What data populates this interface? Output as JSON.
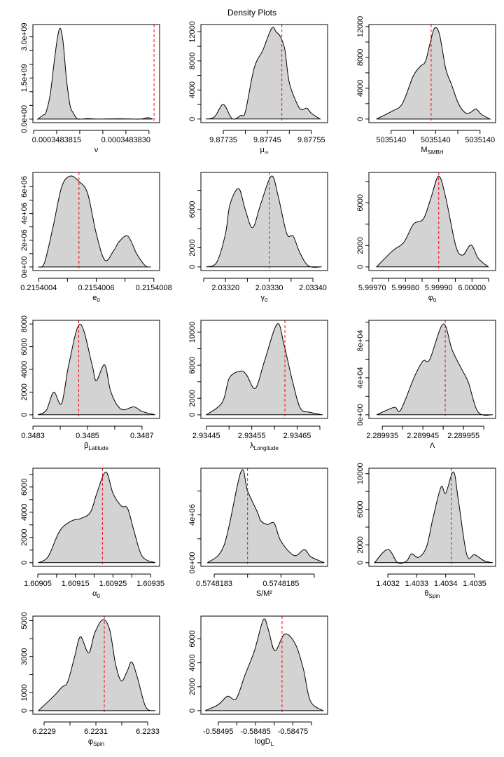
{
  "title": "Density Plots",
  "colors": {
    "fill": "#d3d3d3",
    "line": "#000000",
    "vline": "#ff0000"
  },
  "chart_data": [
    {
      "type": "area",
      "xlabel": {
        "main": "ν",
        "sub": ""
      },
      "xlim": [
        0.000348380985,
        0.00034838373
      ],
      "ylim": [
        -130000000,
        3450000000
      ],
      "xtick_values": [
        0.000348381,
        0.0003483815,
        0.000348382,
        0.0003483825,
        0.000348383,
        0.0003483835
      ],
      "xtick_labels": [
        "",
        "0.0003483815",
        "",
        "",
        "0.0003483830",
        ""
      ],
      "ytick_values": [
        0,
        500000000,
        1000000000,
        1500000000,
        2000000000,
        2500000000,
        3000000000
      ],
      "ytick_labels": [
        "0.0e+00",
        "",
        "",
        "1.5e+09",
        "",
        "",
        "3.0e+09"
      ],
      "vline": 0.00034838361,
      "x": [
        0.00034838109,
        0.00034838121,
        0.00034838127,
        0.00034838136,
        0.00034838144,
        0.00034838152,
        0.00034838158,
        0.00034838164,
        0.00034838171,
        0.00034838179,
        0.00034838185,
        0.00034838194,
        0.00034838203,
        0.00034838217,
        0.00034838239,
        0.00034838285,
        0.0003483833,
        0.00034838345,
        0.00034838352,
        0.00034838358
      ],
      "y": [
        0,
        150000000,
        250000000,
        900000000,
        2000000000,
        3000000000,
        3310000000,
        2800000000,
        1500000000,
        500000000,
        250000000,
        20000000,
        0,
        20000000,
        0,
        15000000,
        0,
        50000000,
        40000000,
        0
      ]
    },
    {
      "type": "area",
      "xlabel": {
        "main": "μ",
        "sub": "∞"
      },
      "xlim": [
        9.877299,
        9.877587
      ],
      "ylim": [
        -500,
        13000
      ],
      "xtick_values": [
        9.87735,
        9.8774,
        9.87745,
        9.8775,
        9.87755
      ],
      "xtick_labels": [
        "9.87735",
        "",
        "9.87745",
        "",
        "9.87755"
      ],
      "ytick_values": [
        0,
        2000,
        4000,
        6000,
        8000,
        10000,
        12000
      ],
      "ytick_labels": [
        "0",
        "",
        "4000",
        "",
        "8000",
        "",
        "12000"
      ],
      "vline": 9.877483,
      "x": [
        9.87731,
        9.87733,
        9.87735,
        9.87737,
        9.87739,
        9.8774,
        9.87742,
        9.87744,
        9.87746,
        9.87747,
        9.87748,
        9.87749,
        9.8775,
        9.87752,
        9.87753,
        9.87754,
        9.87755,
        9.87757
      ],
      "y": [
        0,
        300,
        2000,
        50,
        500,
        1000,
        7000,
        9500,
        12500,
        12000,
        11300,
        9500,
        5000,
        1800,
        1300,
        1500,
        800,
        0
      ]
    },
    {
      "type": "area",
      "xlabel": {
        "main": "M",
        "sub": "SMBH"
      },
      "xlim": [
        5035139.94,
        5035140.054
      ],
      "ylim": [
        -470,
        12270
      ],
      "xtick_values": [
        5035139.96,
        5035139.98,
        5035140.0,
        5035140.02,
        5035140.04
      ],
      "xtick_labels": [
        "5035140",
        "",
        "5035140",
        "",
        "5035140"
      ],
      "ytick_values": [
        0,
        2000,
        4000,
        6000,
        8000,
        10000,
        12000
      ],
      "ytick_labels": [
        "0",
        "",
        "4000",
        "",
        "8000",
        "",
        "12000"
      ],
      "vline": 5035139.996,
      "x": [
        5035139.9468,
        5035139.9606,
        5035139.9701,
        5035139.9796,
        5035139.9859,
        5035139.9909,
        5035139.9953,
        5035139.9991,
        5035140.0035,
        5035140.0092,
        5035140.0143,
        5035140.0206,
        5035140.0269,
        5035140.0319,
        5035140.0363,
        5035140.0414,
        5035140.0489
      ],
      "y": [
        0,
        1000,
        2000,
        5500,
        6800,
        7500,
        10000,
        11800,
        11000,
        6500,
        4500,
        2000,
        800,
        900,
        1300,
        600,
        0
      ]
    },
    {
      "type": "area",
      "xlabel": {
        "main": "e",
        "sub": "0"
      },
      "xlim": [
        0.21540038,
        0.21540082
      ],
      "ylim": [
        -270000,
        7070000
      ],
      "xtick_values": [
        0.2154004,
        0.2154005,
        0.2154006,
        0.2154007,
        0.2154008
      ],
      "xtick_labels": [
        "0.2154004",
        "",
        "0.2154006",
        "",
        "0.2154008"
      ],
      "ytick_values": [
        0,
        1000000,
        2000000,
        3000000,
        4000000,
        5000000,
        6000000
      ],
      "ytick_labels": [
        "0e+00",
        "",
        "2e+06",
        "",
        "4e+06",
        "",
        "6e+06"
      ],
      "vline": 0.21540054,
      "x": [
        0.2154004,
        0.21540042,
        0.21540045,
        0.21540048,
        0.21540051,
        0.21540054,
        0.21540057,
        0.2154006,
        0.21540063,
        0.21540066,
        0.21540068,
        0.21540071,
        0.21540074,
        0.21540077,
        0.21540079
      ],
      "y": [
        0,
        300000,
        3000000,
        6000000,
        6800000,
        6400000,
        5500000,
        2500000,
        500000,
        1200000,
        1900000,
        2300000,
        1000000,
        100000,
        0
      ]
    },
    {
      "type": "area",
      "xlabel": {
        "main": "γ",
        "sub": "0"
      },
      "xlim": [
        2.0331436,
        2.0334336
      ],
      "ylim": [
        -380,
        9880
      ],
      "xtick_values": [
        2.03315,
        2.0332,
        2.03325,
        2.0333,
        2.03335,
        2.0334
      ],
      "xtick_labels": [
        "",
        "2.03320",
        "",
        "2.03330",
        "",
        "2.03340"
      ],
      "ytick_values": [
        0,
        2000,
        4000,
        6000,
        8000
      ],
      "ytick_labels": [
        "0",
        "2000",
        "",
        "6000",
        ""
      ],
      "vline": 2.0333,
      "x": [
        2.033156,
        2.03318,
        2.0332,
        2.03321,
        2.03323,
        2.033245,
        2.033262,
        2.03328,
        2.033305,
        2.03332,
        2.03334,
        2.033355,
        2.03337,
        2.03339,
        2.03342
      ],
      "y": [
        0,
        500,
        3500,
        6500,
        8200,
        6000,
        4100,
        6500,
        9500,
        7500,
        3500,
        3200,
        1500,
        100,
        0
      ]
    },
    {
      "type": "area",
      "xlabel": {
        "main": "φ",
        "sub": "0"
      },
      "xlim": [
        5.99969,
        6.000071
      ],
      "ylim": [
        -340,
        8840
      ],
      "xtick_values": [
        5.9997,
        5.99975,
        5.9998,
        5.99985,
        5.9999,
        5.99995,
        6.0,
        6.00005
      ],
      "xtick_labels": [
        "5.99970",
        "",
        "5.99980",
        "",
        "5.99990",
        "",
        "6.00000",
        ""
      ],
      "ytick_values": [
        0,
        2000,
        4000,
        6000,
        8000
      ],
      "ytick_labels": [
        "0",
        "2000",
        "",
        "6000",
        ""
      ],
      "vline": 5.9999,
      "x": [
        5.999713,
        5.999761,
        5.999795,
        5.999824,
        5.999854,
        5.999877,
        5.9999,
        5.999921,
        5.999951,
        5.999972,
        5.999997,
        6.000019,
        6.000049
      ],
      "y": [
        0,
        1500,
        2300,
        4000,
        4500,
        6500,
        8500,
        6500,
        2000,
        1100,
        2050,
        800,
        0
      ]
    },
    {
      "type": "area",
      "xlabel": {
        "main": "β",
        "sub": "Latitude"
      },
      "xlim": [
        0.34829974,
        0.34876452
      ],
      "ylim": [
        -320,
        8320
      ],
      "xtick_values": [
        0.3483,
        0.3484,
        0.3485,
        0.3486,
        0.3487
      ],
      "xtick_labels": [
        "0.3483",
        "",
        "0.3485",
        "",
        "0.3487"
      ],
      "ytick_values": [
        0,
        2000,
        4000,
        6000,
        8000
      ],
      "ytick_labels": [
        "0",
        "2000",
        "4000",
        "6000",
        "8000"
      ],
      "vline": 0.348468,
      "x": [
        0.348318,
        0.348349,
        0.348376,
        0.348405,
        0.348432,
        0.348473,
        0.348516,
        0.348532,
        0.348563,
        0.348586,
        0.348623,
        0.34867,
        0.3487,
        0.348748
      ],
      "y": [
        0,
        400,
        2000,
        1000,
        4500,
        8000,
        4500,
        3000,
        4400,
        2000,
        500,
        700,
        300,
        0
      ]
    },
    {
      "type": "area",
      "xlabel": {
        "main": "λ",
        "sub": "Longitude"
      },
      "xlim": [
        2.934438,
        2.934717
      ],
      "ylim": [
        -440,
        11440
      ],
      "xtick_values": [
        2.93445,
        2.9345,
        2.93455,
        2.9346,
        2.93465,
        2.9347
      ],
      "xtick_labels": [
        "2.93445",
        "",
        "2.93455",
        "",
        "2.93465",
        ""
      ],
      "ytick_values": [
        0,
        2000,
        4000,
        6000,
        8000,
        10000
      ],
      "ytick_labels": [
        "0",
        "2000",
        "",
        "6000",
        "",
        "10000"
      ],
      "vline": 2.934623,
      "x": [
        2.93445,
        2.934485,
        2.934501,
        2.934526,
        2.934539,
        2.934558,
        2.934578,
        2.934606,
        2.934621,
        2.93464,
        2.934657,
        2.934678,
        2.934706
      ],
      "y": [
        0,
        1500,
        4500,
        5300,
        4800,
        3200,
        6500,
        11000,
        8500,
        4000,
        800,
        300,
        0
      ]
    },
    {
      "type": "area",
      "xlabel": {
        "main": "Λ",
        "sub": ""
      },
      "xlim": [
        2.2899317,
        2.2899629
      ],
      "ylim": [
        -3920,
        101920
      ],
      "xtick_values": [
        2.289935,
        2.28994,
        2.289945,
        2.28995,
        2.289955,
        2.28996
      ],
      "xtick_labels": [
        "2.289935",
        "",
        "2.289945",
        "",
        "2.289955",
        ""
      ],
      "ytick_values": [
        0,
        20000,
        40000,
        60000,
        80000,
        100000
      ],
      "ytick_labels": [
        "0e+00",
        "",
        "4e+04",
        "",
        "8e+04",
        ""
      ],
      "vline": 2.2899505,
      "x": [
        2.2899336,
        2.2899379,
        2.2899395,
        2.2899428,
        2.289945,
        2.2899467,
        2.28995,
        2.2899522,
        2.2899547,
        2.2899562,
        2.2899586,
        2.2899622
      ],
      "y": [
        0,
        8000,
        5000,
        40000,
        58000,
        60000,
        98000,
        70000,
        48000,
        35000,
        3000,
        0
      ]
    },
    {
      "type": "area",
      "xlabel": {
        "main": "α",
        "sub": "0"
      },
      "xlim": [
        1.609037,
        1.609374
      ],
      "ylim": [
        -290,
        7490
      ],
      "xtick_values": [
        1.60905,
        1.6091,
        1.60915,
        1.6092,
        1.60925,
        1.6093,
        1.60935
      ],
      "xtick_labels": [
        "1.60905",
        "",
        "1.60915",
        "",
        "1.60925",
        "",
        "1.60935"
      ],
      "ytick_values": [
        0,
        1000,
        2000,
        3000,
        4000,
        5000,
        6000,
        7000
      ],
      "ytick_labels": [
        "0",
        "",
        "2000",
        "",
        "4000",
        "",
        "6000",
        ""
      ],
      "vline": 1.609222,
      "x": [
        1.609052,
        1.609078,
        1.609108,
        1.609139,
        1.609164,
        1.60919,
        1.609207,
        1.609231,
        1.60925,
        1.609272,
        1.609289,
        1.609306,
        1.609328,
        1.609362
      ],
      "y": [
        0,
        500,
        2500,
        3300,
        3500,
        4000,
        5500,
        7200,
        5500,
        4500,
        4300,
        2500,
        500,
        0
      ]
    },
    {
      "type": "area",
      "xlabel": {
        "main": "S/M²",
        "sub": ""
      },
      "xlim": [
        0.57481826,
        0.57481864
      ],
      "ylim": [
        -300000,
        7900000
      ],
      "xtick_values": [
        0.5748183,
        0.5748184,
        0.5748185,
        0.5748186
      ],
      "xtick_labels": [
        "0.5748183",
        "",
        "0.5748185",
        ""
      ],
      "ytick_values": [
        0,
        2000000,
        4000000,
        6000000
      ],
      "ytick_labels": [
        "0e+00",
        "",
        "4e+06",
        ""
      ],
      "vline": 0.5748184,
      "x": [
        0.57481828,
        0.57481833,
        0.57481838,
        0.5748184,
        0.57481843,
        0.57481844,
        0.57481846,
        0.57481848,
        0.5748185,
        0.57481854,
        0.57481857,
        0.57481859,
        0.57481863
      ],
      "y": [
        0,
        1500000,
        7600000,
        6000000,
        4200000,
        3500000,
        3200000,
        3300000,
        1800000,
        600000,
        1100000,
        500000,
        0
      ]
    },
    {
      "type": "area",
      "xlabel": {
        "main": "θ",
        "sub": "Spin"
      },
      "xlim": [
        1.4031346,
        1.4035726
      ],
      "ylim": [
        -410,
        10610
      ],
      "xtick_values": [
        1.4032,
        1.4033,
        1.4034,
        1.4035
      ],
      "xtick_labels": [
        "1.4032",
        "1.4033",
        "1.4034",
        "1.4035"
      ],
      "ytick_values": [
        0,
        2000,
        4000,
        6000,
        8000,
        10000
      ],
      "ytick_labels": [
        "0",
        "2000",
        "",
        "6000",
        "",
        "10000"
      ],
      "vline": 1.4034194,
      "x": [
        1.403154,
        1.4032,
        1.403234,
        1.403265,
        1.403282,
        1.403306,
        1.403334,
        1.403356,
        1.403384,
        1.4034,
        1.403427,
        1.403444,
        1.403473,
        1.4035,
        1.403534,
        1.403563
      ],
      "y": [
        0,
        1500,
        0,
        200,
        1000,
        600,
        1800,
        5000,
        8500,
        7800,
        10200,
        7000,
        900,
        900,
        200,
        0
      ]
    },
    {
      "type": "area",
      "xlabel": {
        "main": "φ",
        "sub": "Spin"
      },
      "xlim": [
        6.2228568,
        6.2233459
      ],
      "ylim": [
        -200,
        5250
      ],
      "xtick_values": [
        6.2229,
        6.223,
        6.2231,
        6.2232,
        6.2233
      ],
      "xtick_labels": [
        "6.2229",
        "",
        "6.2231",
        "",
        "6.2233"
      ],
      "ytick_values": [
        0,
        1000,
        2000,
        3000,
        4000,
        5000
      ],
      "ytick_labels": [
        "0",
        "1000",
        "",
        "3000",
        "",
        "5000"
      ],
      "vline": 6.2231324,
      "x": [
        6.2228784,
        6.222937,
        6.2229684,
        6.222991,
        6.223018,
        6.2230405,
        6.223072,
        6.223095,
        6.2231262,
        6.223153,
        6.2231757,
        6.223198,
        6.223221,
        6.2232386,
        6.223261,
        6.2232927,
        6.2233289
      ],
      "y": [
        0,
        800,
        1300,
        1600,
        3000,
        4100,
        3200,
        4300,
        5050,
        4500,
        2600,
        1650,
        2200,
        2700,
        1800,
        200,
        0
      ]
    },
    {
      "type": "area",
      "xlabel": {
        "main": "logD",
        "sub": "L"
      },
      "xlim": [
        -0.5849963,
        -0.584657
      ],
      "ylim": [
        -300,
        7900
      ],
      "xtick_values": [
        -0.58495,
        -0.5849,
        -0.58485,
        -0.5848,
        -0.58475,
        -0.5847
      ],
      "xtick_labels": [
        "-0.58495",
        "",
        "-0.58485",
        "",
        "-0.58475",
        ""
      ],
      "ytick_values": [
        0,
        2000,
        4000,
        6000
      ],
      "ytick_labels": [
        "0",
        "2000",
        "4000",
        "6000"
      ],
      "vline": -0.584779,
      "x": [
        -0.5849845,
        -0.58495,
        -0.584925,
        -0.584902,
        -0.584878,
        -0.584853,
        -0.584829,
        -0.584816,
        -0.584798,
        -0.584772,
        -0.584744,
        -0.584722,
        -0.584703,
        -0.584669
      ],
      "y": [
        0,
        500,
        1200,
        1000,
        3000,
        5000,
        7600,
        6800,
        5000,
        6400,
        5600,
        3500,
        800,
        0
      ]
    }
  ]
}
